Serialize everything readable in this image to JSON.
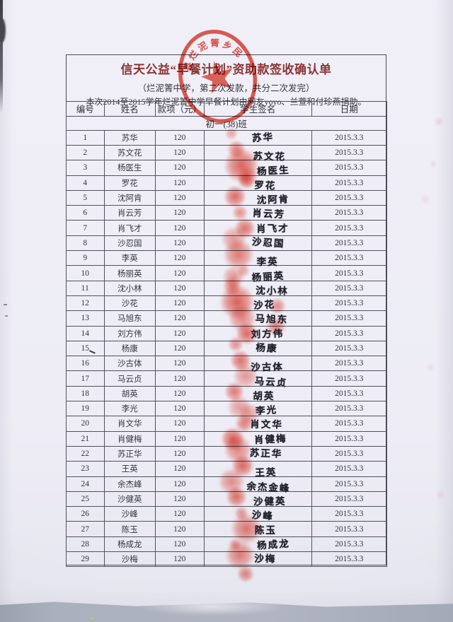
{
  "document": {
    "title": "信天公益“早餐计划”资助款签收确认单",
    "subtitle": "（烂泥箐中学，第二次发款，共分二次发完）",
    "note": "本次2014至2015学年烂泥箐中学早餐计划由网友yoyo、兰萱和付珍燕捐助。",
    "class_label": "初一(38)班"
  },
  "stamp": {
    "arc_text": "县烂泥箐乡民",
    "color": "#df3526"
  },
  "table": {
    "headers": [
      "编号",
      "姓名",
      "款项（元）",
      "学生签名",
      "日期"
    ],
    "rows": [
      {
        "no": "1",
        "name": "苏华",
        "amount": "120",
        "signature": "苏华",
        "date": "2015.3.3"
      },
      {
        "no": "2",
        "name": "苏文花",
        "amount": "120",
        "signature": "苏文花",
        "date": "2015.3.3"
      },
      {
        "no": "3",
        "name": "杨医生",
        "amount": "120",
        "signature": "杨医生",
        "date": "2015.3.3"
      },
      {
        "no": "4",
        "name": "罗花",
        "amount": "120",
        "signature": "罗花",
        "date": "2015.3.3"
      },
      {
        "no": "5",
        "name": "沈阿肯",
        "amount": "120",
        "signature": "沈阿肯",
        "date": "2015.3.3"
      },
      {
        "no": "6",
        "name": "肖云芳",
        "amount": "120",
        "signature": "肖云芳",
        "date": "2015.3.3"
      },
      {
        "no": "7",
        "name": "肖飞才",
        "amount": "120",
        "signature": "肖飞才",
        "date": "2015.3.3"
      },
      {
        "no": "8",
        "name": "沙忍国",
        "amount": "120",
        "signature": "沙忍国",
        "date": "2015.3.3"
      },
      {
        "no": "9",
        "name": "李英",
        "amount": "120",
        "signature": "李英",
        "date": "2015.3.3"
      },
      {
        "no": "10",
        "name": "杨丽英",
        "amount": "120",
        "signature": "杨丽英",
        "date": "2015.3.3"
      },
      {
        "no": "11",
        "name": "沈小林",
        "amount": "120",
        "signature": "沈小林",
        "date": "2015.3.3"
      },
      {
        "no": "12",
        "name": "沙花",
        "amount": "120",
        "signature": "沙花",
        "date": "2015.3.3"
      },
      {
        "no": "13",
        "name": "马旭东",
        "amount": "120",
        "signature": "马旭东",
        "date": "2015.3.3"
      },
      {
        "no": "14",
        "name": "刘方伟",
        "amount": "120",
        "signature": "刘方伟",
        "date": "2015.3.3"
      },
      {
        "no": "15",
        "name": "杨康",
        "amount": "120",
        "signature": "杨康",
        "date": "2015.3.3"
      },
      {
        "no": "16",
        "name": "沙古体",
        "amount": "120",
        "signature": "沙古体",
        "date": "2015.3.3"
      },
      {
        "no": "17",
        "name": "马云贞",
        "amount": "120",
        "signature": "马云贞",
        "date": "2015.3.3"
      },
      {
        "no": "18",
        "name": "胡英",
        "amount": "120",
        "signature": "胡英",
        "date": "2015.3.3"
      },
      {
        "no": "19",
        "name": "李光",
        "amount": "120",
        "signature": "李光",
        "date": "2015.3.3"
      },
      {
        "no": "20",
        "name": "肖文华",
        "amount": "120",
        "signature": "肖文华",
        "date": "2015.3.3"
      },
      {
        "no": "21",
        "name": "肖健梅",
        "amount": "120",
        "signature": "肖健梅",
        "date": "2015.3.3"
      },
      {
        "no": "22",
        "name": "苏正华",
        "amount": "120",
        "signature": "苏正华",
        "date": "2015.3.3"
      },
      {
        "no": "23",
        "name": "王英",
        "amount": "120",
        "signature": "王英",
        "date": "2015.3.3"
      },
      {
        "no": "24",
        "name": "余杰峰",
        "amount": "120",
        "signature": "余杰金峰",
        "date": "2015.3.3"
      },
      {
        "no": "25",
        "name": "沙健英",
        "amount": "120",
        "signature": "沙健英",
        "date": "2015.3.3"
      },
      {
        "no": "26",
        "name": "沙峰",
        "amount": "120",
        "signature": "沙峰",
        "date": "2015.3.3"
      },
      {
        "no": "27",
        "name": "陈玉",
        "amount": "120",
        "signature": "陈玉",
        "date": "2015.3.3"
      },
      {
        "no": "28",
        "name": "杨成龙",
        "amount": "120",
        "signature": "杨成龙",
        "date": "2015.3.3"
      },
      {
        "no": "29",
        "name": "沙梅",
        "amount": "120",
        "signature": "沙梅",
        "date": "2015.3.3"
      }
    ]
  },
  "colors": {
    "title_red": "#8a3434",
    "stamp_red": "#df3526",
    "ink": "#20202a",
    "paper": "#eeedf6"
  }
}
